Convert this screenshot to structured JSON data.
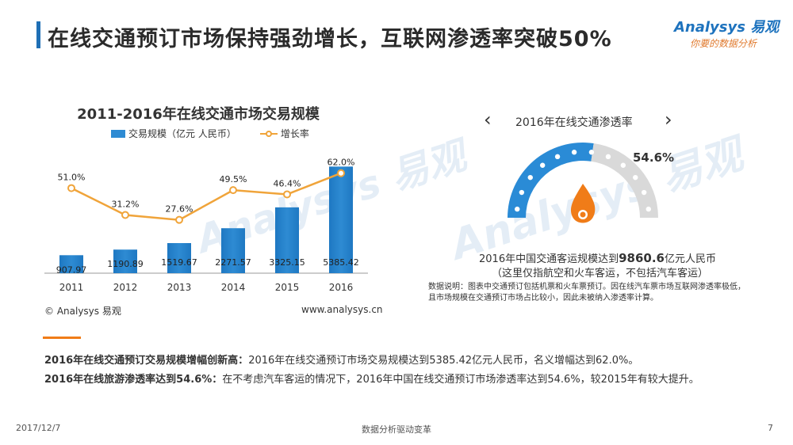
{
  "page": {
    "title": "在线交通预订市场保持强劲增长，互联网渗透率突破50%",
    "logo_main": "Analysys 易观",
    "logo_sub": "你要的数据分析",
    "watermark_1": "Analysys 易观",
    "watermark_2": "Analysys 易观"
  },
  "colors": {
    "bar": "#2e8bd3",
    "line": "#f0a43a",
    "gauge_blue": "#2a8bd6",
    "gauge_gray": "#d9d9d9",
    "flame": "#f07c18",
    "accent_title": "#1f6fb5"
  },
  "chart_data": {
    "type": "bar",
    "title": "2011-2016年在线交通市场交易规模",
    "categories": [
      "2011",
      "2012",
      "2013",
      "2014",
      "2015",
      "2016"
    ],
    "series": [
      {
        "name": "交易规模（亿元 人民币）",
        "type": "bar",
        "values": [
          907.97,
          1190.89,
          1519.67,
          2271.57,
          3325.15,
          5385.42
        ],
        "labels": [
          "907.97",
          "1190.89",
          "1519.67",
          "2271.57",
          "3325.15",
          "5385.42"
        ]
      },
      {
        "name": "增长率",
        "type": "line",
        "values": [
          51.0,
          31.2,
          27.6,
          49.5,
          46.4,
          62.0
        ],
        "labels": [
          "51.0%",
          "31.2%",
          "27.6%",
          "49.5%",
          "46.4%",
          "62.0%"
        ]
      }
    ],
    "legend": {
      "bar": "交易规模（亿元 人民币）",
      "line": "增长率"
    },
    "ylim_bar": [
      0,
      6000
    ],
    "ylim_line": [
      0,
      70
    ],
    "copyright": "© Analysys 易观",
    "source": "www.analysys.cn"
  },
  "gauge": {
    "title": "2016年在线交通渗透率",
    "value_label": "54.6%",
    "value": 54.6,
    "line1_prefix": "2016年中国交通客运规模达到",
    "line1_number": "9860.6",
    "line1_suffix": "亿元人民币",
    "line2": "（这里仅指航空和火车客运，不包括汽车客运）",
    "note": "数据说明：图表中交通预订包括机票和火车票预订。因在线汽车票市场互联网渗透率极低，且市场规模在交通预订市场占比较小，因此未被纳入渗透率计算。",
    "prev_arrow": "‹",
    "next_arrow": "›"
  },
  "summary": {
    "s1_bold": "2016年在线交通预订交易规模增幅创新高：",
    "s1_text": "2016年在线交通预订市场交易规模达到5385.42亿元人民币，名义增幅达到62.0%。",
    "s2_bold": "2016年在线旅游渗透率达到54.6%：",
    "s2_text": "在不考虑汽车客运的情况下，2016年中国在线交通预订市场渗透率达到54.6%，较2015年有较大提升。"
  },
  "footer": {
    "date": "2017/12/7",
    "text": "数据分析驱动变革",
    "page": "7"
  }
}
